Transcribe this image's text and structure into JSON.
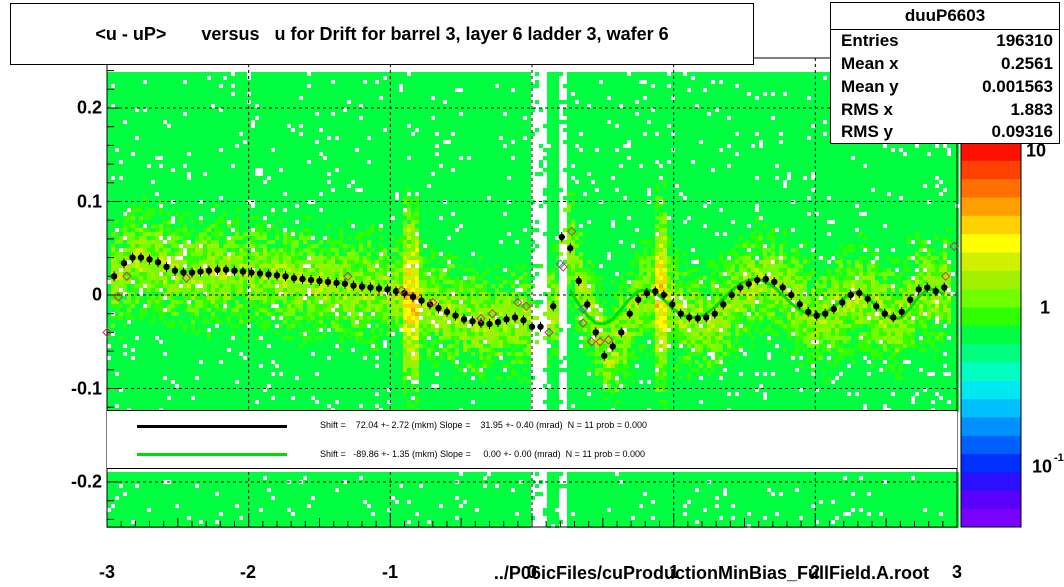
{
  "chart_data": {
    "type": "heatmap",
    "title": "<u - uP>       versus   u for Drift for barrel 3, layer 6 ladder 3, wafer 6",
    "xlabel": "../P06icFiles/cuProductionMinBias_FullField.A.root",
    "ylabel": "",
    "xlim": [
      -3,
      3
    ],
    "ylim": [
      -0.25,
      0.25
    ],
    "x_ticks": [
      "-3",
      "-2",
      "-1",
      "0",
      "1",
      "2",
      "3"
    ],
    "y_ticks": [
      "0.2",
      "0.1",
      "0",
      "-0.1",
      "-0.2"
    ],
    "y_tick_values": [
      0.2,
      0.1,
      0,
      -0.1,
      -0.2
    ],
    "grid": true,
    "colorbar": {
      "scale": "log",
      "tick_labels": [
        "10",
        "1",
        "10"
      ],
      "tick_label_exponent": "-1",
      "palette": [
        "#7a00ff",
        "#5a00ff",
        "#2a10ff",
        "#0030ff",
        "#0060ff",
        "#0090ff",
        "#00c0ff",
        "#00e8f0",
        "#00ffc0",
        "#00ff80",
        "#00ff40",
        "#30ff00",
        "#70ff00",
        "#a0f000",
        "#d0f000",
        "#ffff00",
        "#ffd000",
        "#ffa000",
        "#ff7000",
        "#ff4000",
        "#ff1000"
      ]
    },
    "stats": {
      "name": "duuP6603",
      "rows": [
        {
          "label": "Entries",
          "value": "196310"
        },
        {
          "label": "Mean x",
          "value": "0.2561"
        },
        {
          "label": "Mean y",
          "value": "0.001563"
        },
        {
          "label": "RMS x",
          "value": "1.883"
        },
        {
          "label": "RMS y",
          "value": "0.09316"
        }
      ]
    },
    "legend": [
      {
        "color": "#000000",
        "text": "Shift =    72.04 +- 2.72 (mkm) Slope =    31.95 +- 0.40 (mrad)  N = 11 prob = 0.000"
      },
      {
        "color": "#00dd00",
        "text": "Shift =   -89.86 +- 1.35 (mkm) Slope =     0.00 +- 0.00 (mrad)  N = 11 prob = 0.000"
      }
    ],
    "series": [
      {
        "marker": "filled-circle",
        "color": "#000000",
        "x": [
          -2.95,
          -2.88,
          -2.82,
          -2.76,
          -2.7,
          -2.64,
          -2.58,
          -2.52,
          -2.46,
          -2.4,
          -2.34,
          -2.28,
          -2.22,
          -2.16,
          -2.1,
          -2.04,
          -1.98,
          -1.92,
          -1.86,
          -1.8,
          -1.74,
          -1.68,
          -1.62,
          -1.56,
          -1.5,
          -1.44,
          -1.38,
          -1.32,
          -1.26,
          -1.2,
          -1.14,
          -1.08,
          -1.02,
          -0.96,
          -0.9,
          -0.84,
          -0.78,
          -0.72,
          -0.66,
          -0.6,
          -0.54,
          -0.48,
          -0.42,
          -0.36,
          -0.3,
          -0.24,
          -0.18,
          -0.12,
          -0.06,
          0.0,
          0.06,
          0.15,
          0.21,
          0.27,
          0.33,
          0.39,
          0.45,
          0.51,
          0.57,
          0.63,
          0.69,
          0.75,
          0.81,
          0.87,
          0.93,
          0.99,
          1.05,
          1.11,
          1.17,
          1.23,
          1.29,
          1.35,
          1.41,
          1.47,
          1.53,
          1.59,
          1.65,
          1.71,
          1.77,
          1.83,
          1.89,
          1.95,
          2.01,
          2.07,
          2.13,
          2.19,
          2.25,
          2.31,
          2.37,
          2.43,
          2.49,
          2.55,
          2.61,
          2.67,
          2.73,
          2.79,
          2.85,
          2.91
        ],
        "y": [
          0.02,
          0.034,
          0.04,
          0.04,
          0.038,
          0.035,
          0.03,
          0.026,
          0.024,
          0.024,
          0.025,
          0.026,
          0.027,
          0.027,
          0.026,
          0.025,
          0.024,
          0.023,
          0.022,
          0.021,
          0.02,
          0.018,
          0.017,
          0.016,
          0.015,
          0.014,
          0.013,
          0.012,
          0.01,
          0.009,
          0.008,
          0.007,
          0.006,
          0.004,
          0.002,
          -0.002,
          -0.006,
          -0.01,
          -0.014,
          -0.018,
          -0.022,
          -0.026,
          -0.028,
          -0.03,
          -0.031,
          -0.029,
          -0.026,
          -0.024,
          -0.027,
          -0.034,
          -0.034,
          -0.012,
          0.062,
          0.05,
          0.015,
          -0.01,
          -0.04,
          -0.065,
          -0.055,
          -0.04,
          -0.02,
          -0.005,
          0.002,
          0.004,
          0.0,
          -0.01,
          -0.02,
          -0.024,
          -0.025,
          -0.024,
          -0.02,
          -0.01,
          0.0,
          0.008,
          0.012,
          0.016,
          0.017,
          0.014,
          0.008,
          0.0,
          -0.01,
          -0.018,
          -0.022,
          -0.02,
          -0.015,
          -0.008,
          0.0,
          0.002,
          -0.004,
          -0.012,
          -0.02,
          -0.024,
          -0.018,
          -0.005,
          0.006,
          0.008,
          0.004,
          0.008
        ]
      },
      {
        "marker": "open-diamond",
        "color": "#d03050",
        "x": [
          -3.0,
          -2.92,
          -2.86,
          -2.44,
          -1.3,
          -0.92,
          -0.7,
          -0.36,
          -0.28,
          -0.1,
          -0.04,
          0.12,
          0.22,
          0.28,
          0.36,
          0.42,
          0.48,
          0.54,
          2.92,
          2.98
        ],
        "y": [
          -0.04,
          -0.002,
          0.02,
          0.018,
          0.02,
          0.005,
          -0.008,
          -0.025,
          -0.02,
          -0.008,
          -0.012,
          -0.04,
          0.03,
          0.068,
          -0.03,
          -0.05,
          -0.05,
          -0.048,
          0.02,
          0.052
        ]
      },
      {
        "marker": "open-diamond",
        "color": "#6a5acd",
        "x": [
          0.2,
          0.36
        ],
        "y": [
          0.033,
          -0.015
        ]
      }
    ],
    "fit_line": {
      "color": "#00dd00",
      "x": [
        0.27,
        0.33,
        0.39,
        0.45,
        0.51,
        0.57,
        0.63,
        0.69,
        0.75,
        0.81,
        0.87,
        0.93,
        0.99,
        1.05,
        1.11,
        1.17,
        1.23,
        1.29,
        1.35,
        1.41,
        1.47,
        1.53,
        1.59,
        1.65,
        1.71,
        1.77,
        1.83,
        1.89,
        1.95,
        2.01,
        2.07,
        2.13,
        2.19,
        2.25,
        2.31,
        2.37,
        2.43,
        2.49,
        2.55,
        2.61,
        2.67,
        2.73,
        2.79,
        2.85,
        2.91
      ],
      "y": [
        0.005,
        -0.01,
        -0.022,
        -0.03,
        -0.031,
        -0.026,
        -0.015,
        -0.004,
        0.004,
        0.006,
        0.003,
        -0.005,
        -0.014,
        -0.021,
        -0.024,
        -0.024,
        -0.02,
        -0.013,
        -0.004,
        0.005,
        0.012,
        0.016,
        0.017,
        0.014,
        0.008,
        0.0,
        -0.009,
        -0.016,
        -0.021,
        -0.022,
        -0.019,
        -0.013,
        -0.005,
        0.002,
        0.003,
        -0.003,
        -0.012,
        -0.02,
        -0.026,
        -0.024,
        -0.014,
        -0.002,
        0.006,
        0.006,
        0.0
      ]
    }
  }
}
